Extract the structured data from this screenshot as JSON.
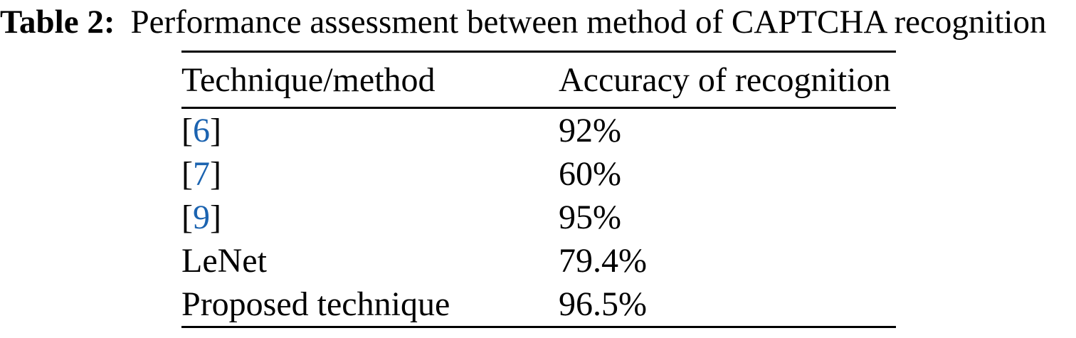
{
  "caption": {
    "label": "Table 2:",
    "text": "Performance assessment between method of CAPTCHA recognition"
  },
  "table": {
    "headers": {
      "method": "Technique/method",
      "accuracy": "Accuracy of recognition"
    },
    "rows": [
      {
        "bracket_open": "[",
        "cite": "6",
        "bracket_close": "]",
        "accuracy": "92%"
      },
      {
        "bracket_open": "[",
        "cite": "7",
        "bracket_close": "]",
        "accuracy": "60%"
      },
      {
        "bracket_open": "[",
        "cite": "9",
        "bracket_close": "]",
        "accuracy": "95%"
      },
      {
        "name": "LeNet",
        "accuracy": "79.4%"
      },
      {
        "name": "Proposed technique",
        "accuracy": "96.5%"
      }
    ]
  },
  "colors": {
    "citation_link": "#1b63b0",
    "text": "#000000"
  }
}
